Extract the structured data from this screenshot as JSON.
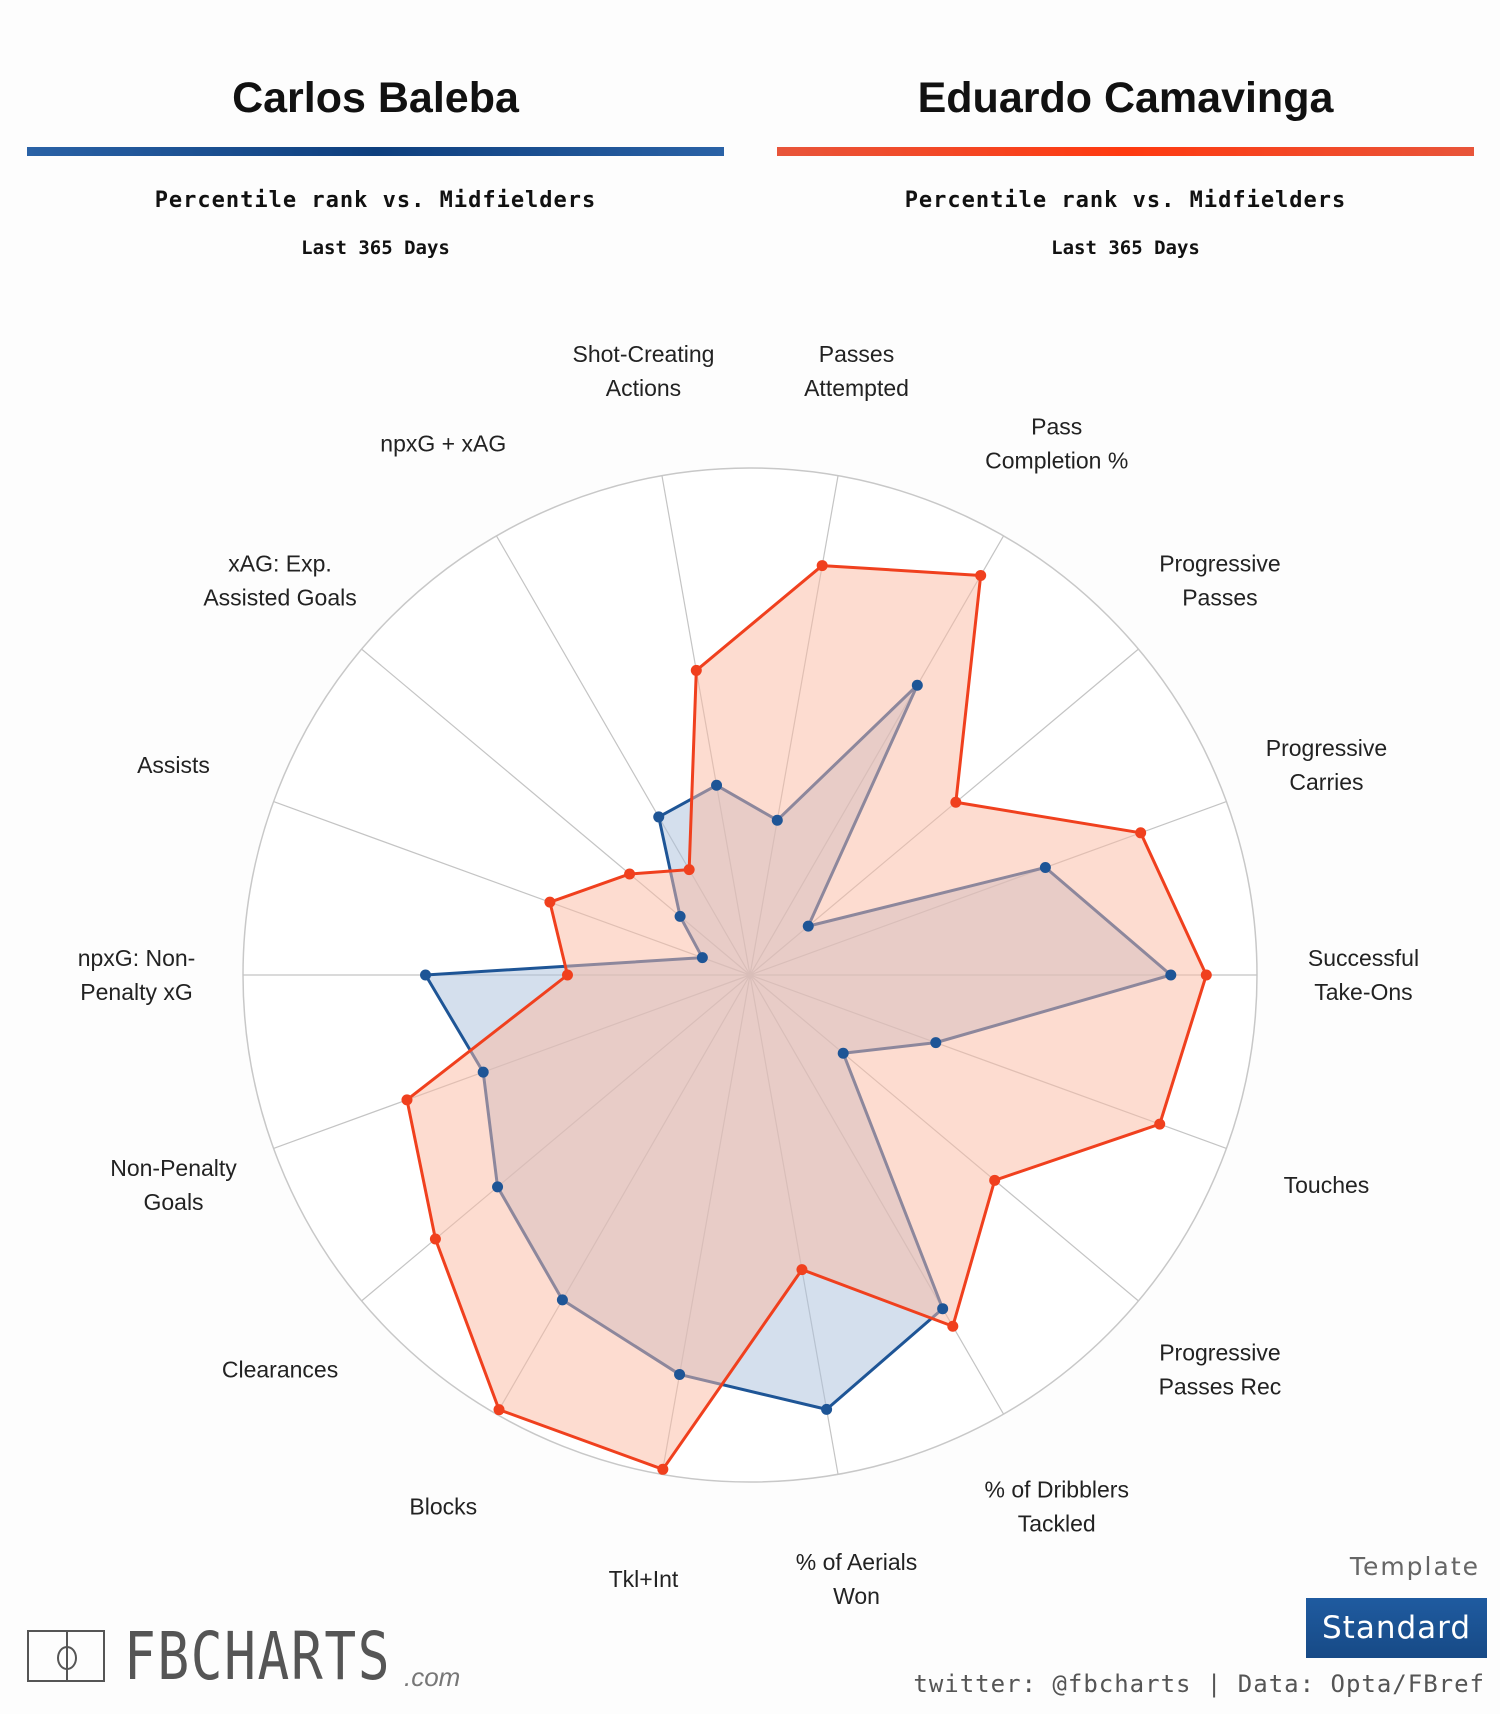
{
  "players": [
    {
      "name": "Carlos Baleba",
      "subtitle": "Percentile rank vs. Midfielders",
      "period": "Last 365 Days",
      "color": "#1e5596"
    },
    {
      "name": "Eduardo Camavinga",
      "subtitle": "Percentile rank vs. Midfielders",
      "period": "Last 365 Days",
      "color": "#f0401e"
    }
  ],
  "chart_data": {
    "type": "radar",
    "range": [
      0,
      100
    ],
    "rings": [
      20,
      40,
      60,
      80,
      100
    ],
    "categories": [
      "Successful\nTake-Ons",
      "Progressive\nCarries",
      "Progressive\nPasses",
      "Pass\nCompletion %",
      "Passes\nAttempted",
      "Shot-Creating\nActions",
      "npxG + xAG",
      "xAG: Exp.\nAssisted Goals",
      "Assists",
      "npxG: Non-\nPenalty xG",
      "Non-Penalty\nGoals",
      "Clearances",
      "Blocks",
      "Tkl+Int",
      "% of Aerials\nWon",
      "% of Dribblers\nTackled",
      "Progressive\nPasses Rec",
      "Touches"
    ],
    "series": [
      {
        "name": "Carlos Baleba",
        "color": "#1e5596",
        "fill": "#a9c0dc",
        "values": [
          83,
          62,
          15,
          66,
          31,
          38,
          36,
          18,
          10,
          64,
          56,
          65,
          74,
          80,
          87,
          76,
          24,
          39
        ]
      },
      {
        "name": "Eduardo Camavinga",
        "color": "#f0401e",
        "fill": "#fbb9a2",
        "values": [
          90,
          82,
          53,
          91,
          82,
          61,
          24,
          31,
          42,
          36,
          72,
          81,
          99,
          99,
          59,
          80,
          63,
          86
        ]
      }
    ]
  },
  "footer": {
    "logo_text": "FBCHARTS",
    "logo_suffix": ".com",
    "template_label": "Template",
    "template_value": "Standard",
    "credit": "twitter: @fbcharts | Data: Opta/FBref"
  }
}
